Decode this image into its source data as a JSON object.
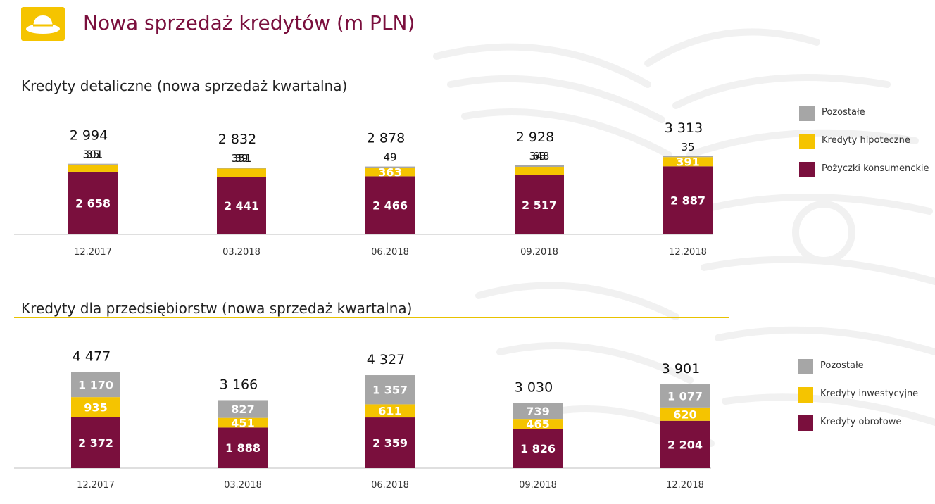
{
  "header": {
    "title": "Nowa sprzedaż kredytów (m PLN)",
    "logo_icon": "bowler-hat-icon"
  },
  "colors": {
    "maroon": "#7a0f3d",
    "yellow": "#f5c400",
    "gray": "#a6a6a6",
    "rule": "#e8c200"
  },
  "chart_data": [
    {
      "type": "bar",
      "stacked": true,
      "title": "Kredyty detaliczne (nowa sprzedaż kwartalna)",
      "categories": [
        "12.2017",
        "03.2018",
        "06.2018",
        "09.2018",
        "12.2018"
      ],
      "totals": [
        "2 994",
        "2 832",
        "2 878",
        "2 928",
        "3 313"
      ],
      "series": [
        {
          "name": "Pożyczki konsumenckie",
          "color": "#7a0f3d",
          "values": [
            2658,
            2441,
            2466,
            2517,
            2887
          ],
          "labels": [
            "2 658",
            "2 441",
            "2 466",
            "2 517",
            "2 887"
          ]
        },
        {
          "name": "Kredyty hipoteczne",
          "color": "#f5c400",
          "values": [
            301,
            351,
            363,
            348,
            391
          ],
          "labels": [
            "301",
            "351",
            "363",
            "348",
            "391"
          ]
        },
        {
          "name": "Pozostałe",
          "color": "#a6a6a6",
          "values": [
            35,
            39,
            49,
            63,
            35
          ],
          "labels": [
            "35",
            "39",
            "49",
            "63",
            "35"
          ]
        }
      ],
      "legend": [
        "Pozostałe",
        "Kredyty hipoteczne",
        "Pożyczki konsumenckie"
      ]
    },
    {
      "type": "bar",
      "stacked": true,
      "title": "Kredyty dla przedsiębiorstw (nowa sprzedaż kwartalna)",
      "categories": [
        "12.2017",
        "03.2018",
        "06.2018",
        "09.2018",
        "12.2018"
      ],
      "totals": [
        "4 477",
        "3 166",
        "4 327",
        "3 030",
        "3 901"
      ],
      "series": [
        {
          "name": "Kredyty obrotowe",
          "color": "#7a0f3d",
          "values": [
            2372,
            1888,
            2359,
            1826,
            2204
          ],
          "labels": [
            "2 372",
            "1 888",
            "2 359",
            "1 826",
            "2 204"
          ]
        },
        {
          "name": "Kredyty inwestycyjne",
          "color": "#f5c400",
          "values": [
            935,
            451,
            611,
            465,
            620
          ],
          "labels": [
            "935",
            "451",
            "611",
            "465",
            "620"
          ]
        },
        {
          "name": "Pozostałe",
          "color": "#a6a6a6",
          "values": [
            1170,
            827,
            1357,
            739,
            1077
          ],
          "labels": [
            "1 170",
            "827",
            "1 357",
            "739",
            "1 077"
          ]
        }
      ],
      "legend": [
        "Pozostałe",
        "Kredyty inwestycyjne",
        "Kredyty obrotowe"
      ]
    }
  ]
}
